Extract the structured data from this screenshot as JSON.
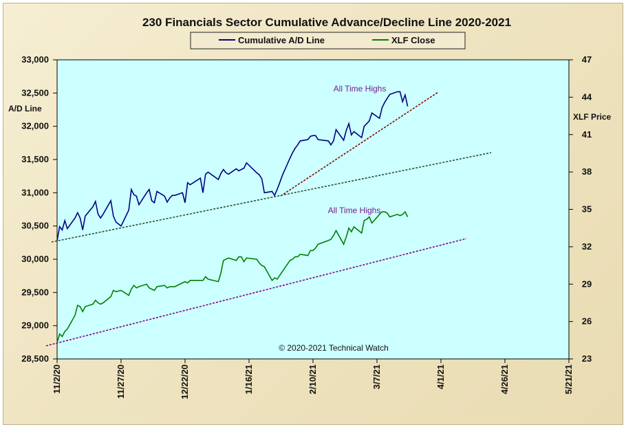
{
  "chart_data": {
    "type": "line",
    "title": "230 Financials  Sector Cumulative  Advance/Decline  Line 2020-2021",
    "ylabel_left": "A/D Line",
    "ylabel_right": "XLF Price",
    "ylim_left": [
      28500,
      33000
    ],
    "ylim_right": [
      23,
      47
    ],
    "xlim": [
      "11/2/20",
      "5/21/21"
    ],
    "x_ticks": [
      "11/2/20",
      "11/27/20",
      "12/22/20",
      "1/16/21",
      "2/10/21",
      "3/7/21",
      "4/1/21",
      "4/26/21",
      "5/21/21"
    ],
    "y_ticks_left": [
      "28,500",
      "29,000",
      "29,500",
      "30,000",
      "30,500",
      "31,000",
      "31,500",
      "32,000",
      "32,500",
      "33,000"
    ],
    "y_ticks_right": [
      "23",
      "26",
      "29",
      "32",
      "35",
      "38",
      "41",
      "44",
      "47"
    ],
    "y_tick_values_right": [
      23,
      26,
      29,
      32,
      35,
      38,
      41,
      44,
      47
    ],
    "legend": [
      "Cumulative A/D Line",
      "XLF Close"
    ],
    "legend_placement": "top-center",
    "grid": false,
    "colors": {
      "plot_background": "#ccffff",
      "ad_line": "#000080",
      "xlf_line": "#008000",
      "ad_trend": "#8b0000",
      "long_trend": "#2f4f2f",
      "xlf_trend": "#8b008b",
      "annotation": "#7a1c8c"
    },
    "annotations": [
      "All Time Highs",
      "All Time Highs"
    ],
    "copyright": "© 2020-2021  Technical Watch",
    "series": [
      {
        "name": "Cumulative A/D Line",
        "axis": "left",
        "x": [
          "2020-11-02",
          "2020-11-03",
          "2020-11-04",
          "2020-11-05",
          "2020-11-06",
          "2020-11-09",
          "2020-11-10",
          "2020-11-11",
          "2020-11-12",
          "2020-11-13",
          "2020-11-16",
          "2020-11-17",
          "2020-11-18",
          "2020-11-19",
          "2020-11-20",
          "2020-11-23",
          "2020-11-24",
          "2020-11-25",
          "2020-11-27",
          "2020-11-30",
          "2020-12-01",
          "2020-12-02",
          "2020-12-03",
          "2020-12-04",
          "2020-12-07",
          "2020-12-08",
          "2020-12-09",
          "2020-12-10",
          "2020-12-11",
          "2020-12-14",
          "2020-12-15",
          "2020-12-16",
          "2020-12-17",
          "2020-12-18",
          "2020-12-21",
          "2020-12-22",
          "2020-12-23",
          "2020-12-24",
          "2020-12-28",
          "2020-12-29",
          "2020-12-30",
          "2020-12-31",
          "2021-01-04",
          "2021-01-05",
          "2021-01-06",
          "2021-01-07",
          "2021-01-08",
          "2021-01-11",
          "2021-01-12",
          "2021-01-13",
          "2021-01-14",
          "2021-01-15",
          "2021-01-19",
          "2021-01-20",
          "2021-01-21",
          "2021-01-22",
          "2021-01-25",
          "2021-01-26",
          "2021-01-27",
          "2021-01-28",
          "2021-01-29",
          "2021-02-01",
          "2021-02-02",
          "2021-02-03",
          "2021-02-04",
          "2021-02-05",
          "2021-02-08",
          "2021-02-09",
          "2021-02-10",
          "2021-02-11",
          "2021-02-12",
          "2021-02-16",
          "2021-02-17",
          "2021-02-18",
          "2021-02-19",
          "2021-02-22",
          "2021-02-23",
          "2021-02-24",
          "2021-02-25",
          "2021-02-26",
          "2021-03-01",
          "2021-03-02",
          "2021-03-03",
          "2021-03-04",
          "2021-03-05",
          "2021-03-08",
          "2021-03-09",
          "2021-03-10",
          "2021-03-11",
          "2021-03-12",
          "2021-03-15",
          "2021-03-16",
          "2021-03-17",
          "2021-03-18",
          "2021-03-19"
        ],
        "values": [
          30280,
          30490,
          30440,
          30580,
          30460,
          30620,
          30700,
          30620,
          30440,
          30650,
          30790,
          30870,
          30680,
          30620,
          30680,
          30880,
          30650,
          30560,
          30500,
          30740,
          31050,
          30970,
          30950,
          30820,
          31000,
          31050,
          30880,
          30850,
          31020,
          30950,
          30860,
          30920,
          30960,
          30960,
          31000,
          30850,
          31150,
          31120,
          31220,
          31000,
          31280,
          31310,
          31200,
          31290,
          31350,
          31300,
          31280,
          31360,
          31330,
          31350,
          31370,
          31450,
          31300,
          31270,
          31210,
          31000,
          31020,
          30960,
          31050,
          31150,
          31260,
          31520,
          31600,
          31670,
          31720,
          31780,
          31800,
          31850,
          31860,
          31860,
          31800,
          31780,
          31720,
          31780,
          31950,
          31790,
          31940,
          32040,
          31870,
          31920,
          31830,
          32000,
          32040,
          32080,
          32200,
          32120,
          32280,
          32360,
          32420,
          32480,
          32520,
          32520,
          32370,
          32470,
          32300
        ]
      },
      {
        "name": "XLF Close",
        "axis": "right",
        "x": [
          "2020-11-02",
          "2020-11-03",
          "2020-11-04",
          "2020-11-05",
          "2020-11-06",
          "2020-11-09",
          "2020-11-10",
          "2020-11-11",
          "2020-11-12",
          "2020-11-13",
          "2020-11-16",
          "2020-11-17",
          "2020-11-18",
          "2020-11-19",
          "2020-11-20",
          "2020-11-23",
          "2020-11-24",
          "2020-11-25",
          "2020-11-27",
          "2020-11-30",
          "2020-12-01",
          "2020-12-02",
          "2020-12-03",
          "2020-12-04",
          "2020-12-07",
          "2020-12-08",
          "2020-12-09",
          "2020-12-10",
          "2020-12-11",
          "2020-12-14",
          "2020-12-15",
          "2020-12-16",
          "2020-12-17",
          "2020-12-18",
          "2020-12-21",
          "2020-12-22",
          "2020-12-23",
          "2020-12-24",
          "2020-12-28",
          "2020-12-29",
          "2020-12-30",
          "2020-12-31",
          "2021-01-04",
          "2021-01-05",
          "2021-01-06",
          "2021-01-07",
          "2021-01-08",
          "2021-01-11",
          "2021-01-12",
          "2021-01-13",
          "2021-01-14",
          "2021-01-15",
          "2021-01-19",
          "2021-01-20",
          "2021-01-21",
          "2021-01-22",
          "2021-01-25",
          "2021-01-26",
          "2021-01-27",
          "2021-01-28",
          "2021-01-29",
          "2021-02-01",
          "2021-02-02",
          "2021-02-03",
          "2021-02-04",
          "2021-02-05",
          "2021-02-08",
          "2021-02-09",
          "2021-02-10",
          "2021-02-11",
          "2021-02-12",
          "2021-02-16",
          "2021-02-17",
          "2021-02-18",
          "2021-02-19",
          "2021-02-22",
          "2021-02-23",
          "2021-02-24",
          "2021-02-25",
          "2021-02-26",
          "2021-03-01",
          "2021-03-02",
          "2021-03-03",
          "2021-03-04",
          "2021-03-05",
          "2021-03-08",
          "2021-03-09",
          "2021-03-10",
          "2021-03-11",
          "2021-03-12",
          "2021-03-15",
          "2021-03-16",
          "2021-03-17",
          "2021-03-18",
          "2021-03-19"
        ],
        "values": [
          24.3,
          25.0,
          24.8,
          25.2,
          25.4,
          26.5,
          27.3,
          27.2,
          26.8,
          27.2,
          27.4,
          27.7,
          27.5,
          27.4,
          27.5,
          28.0,
          28.5,
          28.4,
          28.5,
          28.1,
          28.6,
          28.9,
          28.7,
          28.8,
          29.0,
          28.7,
          28.6,
          28.5,
          28.8,
          28.9,
          28.7,
          28.8,
          28.8,
          28.8,
          29.1,
          29.2,
          29.1,
          29.3,
          29.3,
          29.3,
          29.6,
          29.4,
          29.2,
          29.9,
          30.9,
          31.0,
          31.1,
          30.9,
          31.2,
          31.2,
          30.8,
          31.1,
          31.0,
          30.7,
          30.5,
          30.4,
          29.3,
          29.5,
          29.4,
          29.7,
          30.0,
          30.9,
          31.0,
          31.2,
          31.2,
          31.4,
          31.3,
          31.7,
          31.7,
          31.9,
          32.2,
          32.5,
          32.6,
          32.9,
          33.3,
          32.2,
          32.8,
          33.5,
          33.2,
          33.6,
          33.1,
          34.1,
          34.2,
          34.4,
          33.9,
          34.6,
          34.8,
          34.8,
          34.7,
          34.4,
          34.6,
          34.5,
          34.6,
          34.8,
          34.4
        ]
      }
    ]
  }
}
